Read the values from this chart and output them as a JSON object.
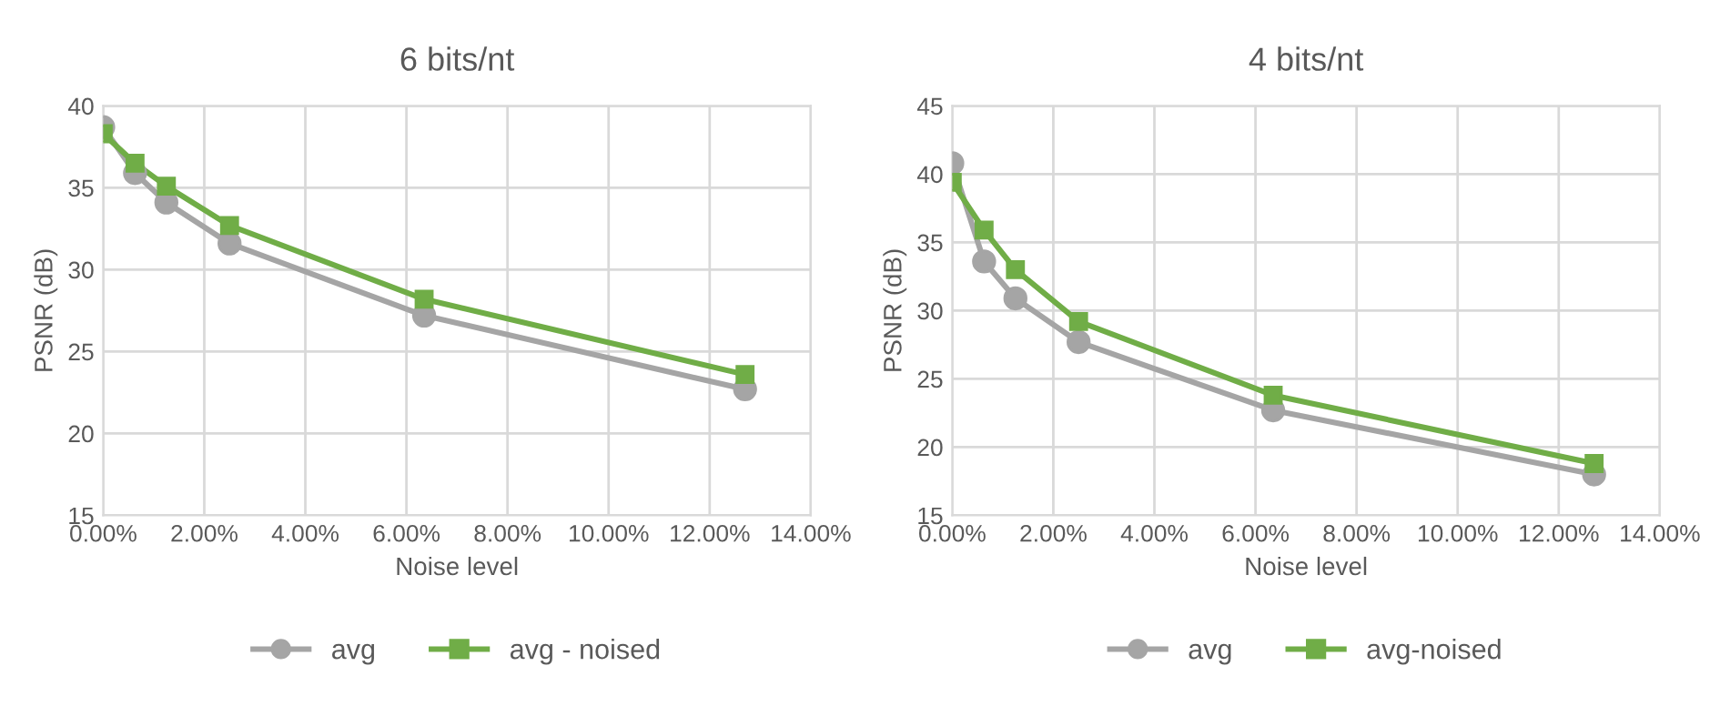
{
  "chart_data": [
    {
      "type": "line",
      "title": "6 bits/nt",
      "xlabel": "Noise level",
      "ylabel": "PSNR (dB)",
      "x": [
        0,
        0.63,
        1.25,
        2.5,
        6.35,
        12.7
      ],
      "series": [
        {
          "name": "avg",
          "color": "#a5a5a5",
          "marker": "circle",
          "values": [
            38.7,
            35.9,
            34.1,
            31.6,
            27.2,
            22.7
          ]
        },
        {
          "name": "avg - noised",
          "color": "#70ad47",
          "marker": "square",
          "values": [
            38.3,
            36.5,
            35.1,
            32.7,
            28.2,
            23.6
          ]
        }
      ],
      "xlim": [
        0,
        14
      ],
      "xticks": [
        {
          "value": 0,
          "label": "0.00%"
        },
        {
          "value": 2,
          "label": "2.00%"
        },
        {
          "value": 4,
          "label": "4.00%"
        },
        {
          "value": 6,
          "label": "6.00%"
        },
        {
          "value": 8,
          "label": "8.00%"
        },
        {
          "value": 10,
          "label": "10.00%"
        },
        {
          "value": 12,
          "label": "12.00%"
        },
        {
          "value": 14,
          "label": "14.00%"
        }
      ],
      "ylim": [
        15,
        40
      ],
      "yticks": [
        15,
        20,
        25,
        30,
        35,
        40
      ],
      "grid": true,
      "legend": "bottom"
    },
    {
      "type": "line",
      "title": "4 bits/nt",
      "xlabel": "Noise level",
      "ylabel": "PSNR (dB)",
      "x": [
        0,
        0.63,
        1.25,
        2.5,
        6.35,
        12.7
      ],
      "series": [
        {
          "name": "avg",
          "color": "#a5a5a5",
          "marker": "circle",
          "values": [
            40.8,
            33.6,
            30.9,
            27.7,
            22.7,
            18.0
          ]
        },
        {
          "name": "avg-noised",
          "color": "#70ad47",
          "marker": "square",
          "values": [
            39.4,
            35.9,
            33.0,
            29.2,
            23.8,
            18.8
          ]
        }
      ],
      "xlim": [
        0,
        14
      ],
      "xticks": [
        {
          "value": 0,
          "label": "0.00%"
        },
        {
          "value": 2,
          "label": "2.00%"
        },
        {
          "value": 4,
          "label": "4.00%"
        },
        {
          "value": 6,
          "label": "6.00%"
        },
        {
          "value": 8,
          "label": "8.00%"
        },
        {
          "value": 10,
          "label": "10.00%"
        },
        {
          "value": 12,
          "label": "12.00%"
        },
        {
          "value": 14,
          "label": "14.00%"
        }
      ],
      "ylim": [
        15,
        45
      ],
      "yticks": [
        15,
        20,
        25,
        30,
        35,
        40,
        45
      ],
      "grid": true,
      "legend": "bottom"
    }
  ]
}
